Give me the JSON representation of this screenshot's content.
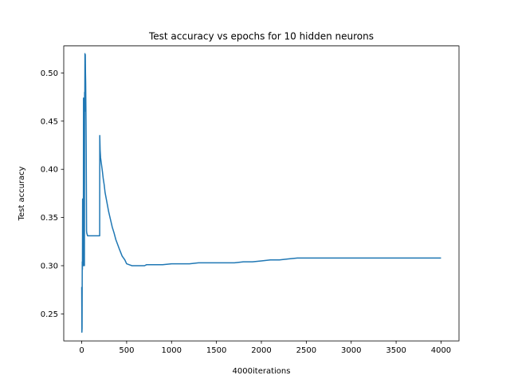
{
  "chart_data": {
    "type": "line",
    "title": "Test accuracy vs epochs for 10 hidden neurons",
    "xlabel": "4000iterations",
    "ylabel": "Test accuracy",
    "xlim": [
      -200,
      4200
    ],
    "ylim": [
      0.222,
      0.528
    ],
    "xticks": [
      0,
      500,
      1000,
      1500,
      2000,
      2500,
      3000,
      3500,
      4000
    ],
    "xtick_labels": [
      "0",
      "500",
      "1000",
      "1500",
      "2000",
      "2500",
      "3000",
      "3500",
      "4000"
    ],
    "yticks": [
      0.25,
      0.3,
      0.35,
      0.4,
      0.45,
      0.5
    ],
    "ytick_labels": [
      "0.25",
      "0.30",
      "0.35",
      "0.40",
      "0.45",
      "0.50"
    ],
    "grid": false,
    "series": [
      {
        "color": "#1f77b4",
        "x": [
          0,
          2,
          4,
          6,
          8,
          10,
          12,
          14,
          16,
          18,
          20,
          22,
          24,
          26,
          28,
          30,
          32,
          34,
          36,
          38,
          40,
          42,
          44,
          46,
          48,
          50,
          52,
          54,
          56,
          58,
          60,
          62,
          65,
          70,
          80,
          100,
          150,
          200,
          201,
          205,
          210,
          220,
          230,
          240,
          250,
          260,
          280,
          300,
          320,
          340,
          360,
          380,
          400,
          420,
          450,
          480,
          500,
          530,
          560,
          600,
          650,
          700,
          720,
          800,
          900,
          1000,
          1100,
          1200,
          1300,
          1400,
          1500,
          1600,
          1700,
          1800,
          1900,
          2000,
          2100,
          2200,
          2300,
          2400,
          2450,
          2500,
          3000,
          3500,
          4000
        ],
        "y": [
          0.278,
          0.231,
          0.235,
          0.304,
          0.296,
          0.369,
          0.302,
          0.312,
          0.37,
          0.3,
          0.474,
          0.31,
          0.47,
          0.32,
          0.474,
          0.3,
          0.48,
          0.46,
          0.52,
          0.51,
          0.519,
          0.5,
          0.49,
          0.47,
          0.45,
          0.42,
          0.38,
          0.336,
          0.334,
          0.333,
          0.333,
          0.332,
          0.331,
          0.331,
          0.331,
          0.331,
          0.331,
          0.331,
          0.435,
          0.42,
          0.412,
          0.405,
          0.398,
          0.39,
          0.384,
          0.376,
          0.366,
          0.356,
          0.348,
          0.34,
          0.334,
          0.327,
          0.322,
          0.317,
          0.31,
          0.306,
          0.302,
          0.301,
          0.3,
          0.3,
          0.3,
          0.3,
          0.301,
          0.301,
          0.301,
          0.302,
          0.302,
          0.302,
          0.303,
          0.303,
          0.303,
          0.303,
          0.303,
          0.304,
          0.304,
          0.305,
          0.306,
          0.306,
          0.307,
          0.308,
          0.308,
          0.308,
          0.308,
          0.308,
          0.308
        ]
      }
    ]
  }
}
